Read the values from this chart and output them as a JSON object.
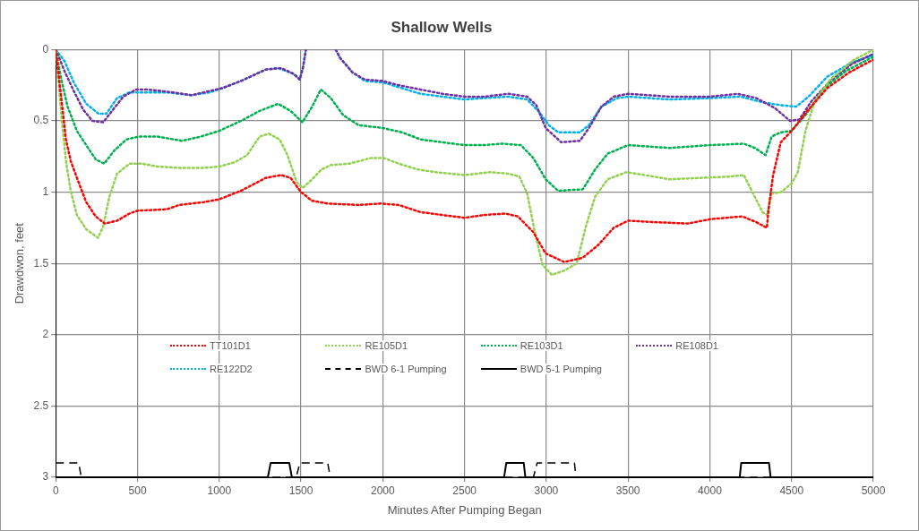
{
  "chart_data": {
    "type": "line",
    "title": "Shallow Wells",
    "xlabel": "Minutes After Pumping Began",
    "ylabel": "Drawdwon, feet",
    "xlim": [
      0,
      5000
    ],
    "xticks": [
      0,
      500,
      1000,
      1500,
      2000,
      2500,
      3000,
      3500,
      4000,
      4500,
      5000
    ],
    "ylim": [
      3,
      0
    ],
    "yticks": [
      0,
      0.5,
      1,
      1.5,
      2,
      2.5,
      3
    ],
    "grid": true,
    "legend": "bottom",
    "marker": "none",
    "series": [
      {
        "name": "TT101D1",
        "color": "#ff0000",
        "line_style": "dotted",
        "x": [
          0,
          62,
          91,
          129,
          186,
          244,
          299,
          375,
          451,
          500,
          678,
          754,
          905,
          1000,
          1133,
          1284,
          1379,
          1436,
          1500,
          1566,
          1663,
          1852,
          1985,
          2098,
          2231,
          2364,
          2500,
          2618,
          2750,
          2826,
          2920,
          2996,
          3110,
          3223,
          3318,
          3412,
          3500,
          3658,
          3867,
          4000,
          4198,
          4283,
          4349,
          4359,
          4387,
          4434,
          4500,
          4604,
          4718,
          4852,
          5000
        ],
        "values": [
          0,
          0.63,
          0.78,
          0.9,
          1.07,
          1.17,
          1.22,
          1.2,
          1.15,
          1.13,
          1.12,
          1.09,
          1.07,
          1.05,
          0.99,
          0.9,
          0.88,
          0.9,
          1,
          1.06,
          1.08,
          1.09,
          1.08,
          1.09,
          1.14,
          1.16,
          1.18,
          1.16,
          1.15,
          1.17,
          1.28,
          1.43,
          1.49,
          1.46,
          1.37,
          1.25,
          1.2,
          1.21,
          1.22,
          1.19,
          1.17,
          1.21,
          1.25,
          1.12,
          0.88,
          0.65,
          0.57,
          0.42,
          0.27,
          0.16,
          0.07
        ]
      },
      {
        "name": "RE105D1",
        "color": "#92d050",
        "line_style": "dotted",
        "x": [
          0,
          34,
          62,
          91,
          129,
          186,
          258,
          290,
          328,
          375,
          451,
          527,
          621,
          754,
          905,
          1000,
          1095,
          1170,
          1246,
          1303,
          1369,
          1417,
          1473,
          1511,
          1568,
          1625,
          1682,
          1795,
          1928,
          2004,
          2098,
          2212,
          2326,
          2500,
          2655,
          2769,
          2835,
          2883,
          2930,
          2977,
          3034,
          3110,
          3186,
          3242,
          3299,
          3375,
          3489,
          3602,
          3754,
          3943,
          4133,
          4208,
          4256,
          4322,
          4350,
          4378,
          4434,
          4500,
          4538,
          4585,
          4642,
          4737,
          4870,
          5000
        ],
        "values": [
          0,
          0.46,
          0.78,
          0.99,
          1.16,
          1.26,
          1.32,
          1.24,
          1.03,
          0.87,
          0.8,
          0.8,
          0.82,
          0.83,
          0.83,
          0.82,
          0.79,
          0.74,
          0.61,
          0.59,
          0.63,
          0.74,
          0.93,
          0.97,
          0.91,
          0.84,
          0.81,
          0.8,
          0.76,
          0.76,
          0.8,
          0.84,
          0.86,
          0.88,
          0.86,
          0.87,
          0.89,
          1.01,
          1.28,
          1.51,
          1.58,
          1.55,
          1.5,
          1.24,
          1.03,
          0.91,
          0.86,
          0.88,
          0.91,
          0.9,
          0.89,
          0.88,
          0.99,
          1.14,
          1.16,
          1.01,
          1,
          0.94,
          0.86,
          0.57,
          0.36,
          0.21,
          0.08,
          0
        ]
      },
      {
        "name": "RE103D1",
        "color": "#00b050",
        "line_style": "dotted",
        "x": [
          0,
          34,
          72,
          129,
          186,
          244,
          296,
          356,
          432,
          508,
          621,
          773,
          887,
          1000,
          1133,
          1246,
          1360,
          1436,
          1508,
          1568,
          1621,
          1682,
          1758,
          1852,
          2000,
          2117,
          2231,
          2364,
          2500,
          2618,
          2731,
          2845,
          2920,
          2996,
          3072,
          3223,
          3299,
          3375,
          3500,
          3754,
          4000,
          4208,
          4275,
          4341,
          4378,
          4434,
          4500,
          4585,
          4699,
          4832,
          5000
        ],
        "values": [
          0,
          0.21,
          0.4,
          0.57,
          0.67,
          0.77,
          0.8,
          0.71,
          0.63,
          0.61,
          0.61,
          0.64,
          0.61,
          0.57,
          0.5,
          0.43,
          0.38,
          0.43,
          0.51,
          0.4,
          0.28,
          0.34,
          0.46,
          0.53,
          0.55,
          0.58,
          0.63,
          0.65,
          0.67,
          0.67,
          0.66,
          0.67,
          0.76,
          0.91,
          0.99,
          0.98,
          0.84,
          0.73,
          0.67,
          0.69,
          0.67,
          0.66,
          0.69,
          0.74,
          0.61,
          0.58,
          0.57,
          0.46,
          0.27,
          0.15,
          0.05
        ]
      },
      {
        "name": "RE108D1",
        "color": "#7030a0",
        "line_style": "dotted",
        "x": [
          0,
          53,
          110,
          167,
          224,
          290,
          337,
          413,
          489,
          565,
          716,
          830,
          943,
          1019,
          1133,
          1284,
          1379,
          1455,
          1492,
          1511,
          1530,
          1600,
          1712,
          1740,
          1815,
          1890,
          2000,
          2098,
          2231,
          2364,
          2500,
          2618,
          2769,
          2883,
          2939,
          2996,
          3091,
          3205,
          3261,
          3337,
          3413,
          3500,
          3754,
          4000,
          4170,
          4284,
          4398,
          4491,
          4548,
          4623,
          4737,
          4870,
          5000
        ],
        "values": [
          0,
          0.15,
          0.29,
          0.42,
          0.5,
          0.51,
          0.44,
          0.33,
          0.28,
          0.28,
          0.3,
          0.32,
          0.29,
          0.27,
          0.22,
          0.14,
          0.13,
          0.17,
          0.21,
          0.13,
          0,
          null,
          0,
          0.06,
          0.16,
          0.21,
          0.22,
          0.25,
          0.28,
          0.31,
          0.33,
          0.33,
          0.31,
          0.33,
          0.39,
          0.55,
          0.65,
          0.64,
          0.55,
          0.4,
          0.33,
          0.31,
          0.33,
          0.33,
          0.31,
          0.34,
          0.41,
          0.5,
          0.49,
          0.36,
          0.22,
          0.1,
          0.03
        ]
      },
      {
        "name": "RE122D2",
        "color": "#00b0f0",
        "line_style": "dotted",
        "x": [
          0,
          53,
          110,
          186,
          262,
          309,
          375,
          451,
          527,
          678,
          830,
          943,
          1019,
          1133,
          1284,
          1360,
          1455,
          1492,
          1511,
          1530,
          1600,
          1712,
          1740,
          1815,
          1890,
          2000,
          2231,
          2500,
          2618,
          2769,
          2883,
          2958,
          3015,
          3072,
          3205,
          3261,
          3337,
          3432,
          3500,
          3754,
          4000,
          4189,
          4322,
          4434,
          4529,
          4604,
          4718,
          4870,
          5000
        ],
        "values": [
          0,
          0.08,
          0.23,
          0.38,
          0.45,
          0.45,
          0.34,
          0.3,
          0.3,
          0.3,
          0.32,
          0.3,
          0.27,
          0.22,
          0.14,
          0.13,
          0.17,
          0.21,
          0.13,
          0,
          null,
          0,
          0.06,
          0.16,
          0.22,
          0.23,
          0.31,
          0.35,
          0.34,
          0.33,
          0.35,
          0.44,
          0.53,
          0.58,
          0.58,
          0.53,
          0.4,
          0.34,
          0.33,
          0.35,
          0.34,
          0.33,
          0.37,
          0.39,
          0.4,
          0.33,
          0.19,
          0.09,
          0.04
        ]
      },
      {
        "name": "BWD 6-1 Pumping",
        "color": "#000000",
        "line_style": "dashed",
        "x": [
          0,
          140,
          156,
          1470,
          1493,
          1663,
          1679,
          2921,
          2944,
          3172,
          3182,
          5000
        ],
        "values": [
          2.9,
          2.9,
          3,
          3,
          2.9,
          2.9,
          3,
          3,
          2.9,
          2.9,
          3,
          3
        ]
      },
      {
        "name": "BWD 5-1 Pumping",
        "color": "#000000",
        "line_style": "solid",
        "x": [
          0,
          1297,
          1314,
          1428,
          1444,
          2742,
          2755,
          2862,
          2872,
          4183,
          4192,
          4362,
          4372,
          5000
        ],
        "values": [
          3,
          3,
          2.9,
          2.9,
          3,
          3,
          2.9,
          2.9,
          3,
          3,
          2.9,
          2.9,
          3,
          3
        ]
      }
    ]
  }
}
